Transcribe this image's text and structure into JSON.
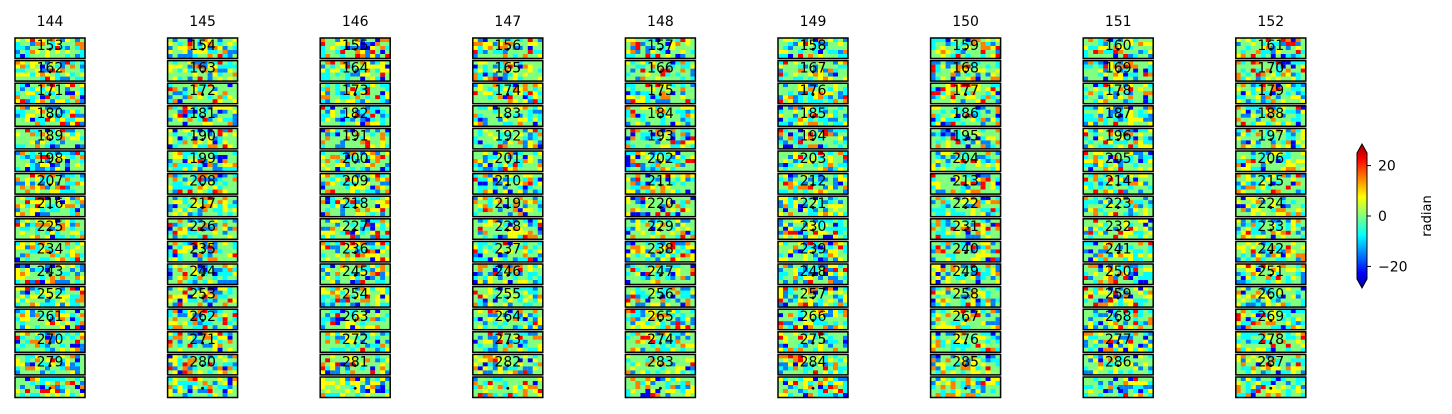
{
  "chart_data": {
    "type": "heatmap",
    "column_titles": [
      "144",
      "145",
      "146",
      "147",
      "148",
      "149",
      "150",
      "151",
      "152"
    ],
    "columns": [
      {
        "title": "144",
        "panel_labels": [
          "153",
          "162",
          "171",
          "180",
          "189",
          "198",
          "207",
          "216",
          "225",
          "234",
          "243",
          "252",
          "261",
          "270",
          "279",
          ""
        ]
      },
      {
        "title": "145",
        "panel_labels": [
          "154",
          "163",
          "172",
          "181",
          "190",
          "199",
          "208",
          "217",
          "226",
          "235",
          "244",
          "253",
          "262",
          "271",
          "280",
          ""
        ]
      },
      {
        "title": "146",
        "panel_labels": [
          "155",
          "164",
          "173",
          "182",
          "191",
          "200",
          "209",
          "218",
          "227",
          "236",
          "245",
          "254",
          "263",
          "272",
          "281",
          ""
        ]
      },
      {
        "title": "147",
        "panel_labels": [
          "156",
          "165",
          "174",
          "183",
          "192",
          "201",
          "210",
          "219",
          "228",
          "237",
          "246",
          "255",
          "264",
          "273",
          "282",
          ""
        ]
      },
      {
        "title": "148",
        "panel_labels": [
          "157",
          "166",
          "175",
          "184",
          "193",
          "202",
          "211",
          "220",
          "229",
          "238",
          "247",
          "256",
          "265",
          "274",
          "283",
          ""
        ]
      },
      {
        "title": "149",
        "panel_labels": [
          "158",
          "167",
          "176",
          "185",
          "194",
          "203",
          "212",
          "221",
          "230",
          "239",
          "248",
          "257",
          "266",
          "275",
          "284",
          ""
        ]
      },
      {
        "title": "150",
        "panel_labels": [
          "159",
          "168",
          "177",
          "186",
          "195",
          "204",
          "213",
          "222",
          "231",
          "240",
          "249",
          "258",
          "267",
          "276",
          "285",
          ""
        ]
      },
      {
        "title": "151",
        "panel_labels": [
          "160",
          "169",
          "178",
          "187",
          "196",
          "205",
          "214",
          "223",
          "232",
          "241",
          "250",
          "259",
          "268",
          "277",
          "286",
          ""
        ]
      },
      {
        "title": "152",
        "panel_labels": [
          "161",
          "170",
          "179",
          "188",
          "197",
          "206",
          "215",
          "224",
          "233",
          "242",
          "251",
          "260",
          "269",
          "278",
          "287",
          ""
        ]
      }
    ],
    "colormap": "jet",
    "colorbar": {
      "label": "radian",
      "ticks": [
        20,
        0,
        -20
      ],
      "tick_labels": [
        "20",
        "0",
        "−20"
      ],
      "range": [
        -25,
        25
      ],
      "extend": "both"
    }
  },
  "colors": {
    "jet": [
      "#00007f",
      "#0000ff",
      "#0080ff",
      "#00ffff",
      "#80ff80",
      "#ffff00",
      "#ff8000",
      "#ff0000",
      "#7f0000"
    ],
    "frame": "#000000",
    "background": "#ffffff"
  }
}
